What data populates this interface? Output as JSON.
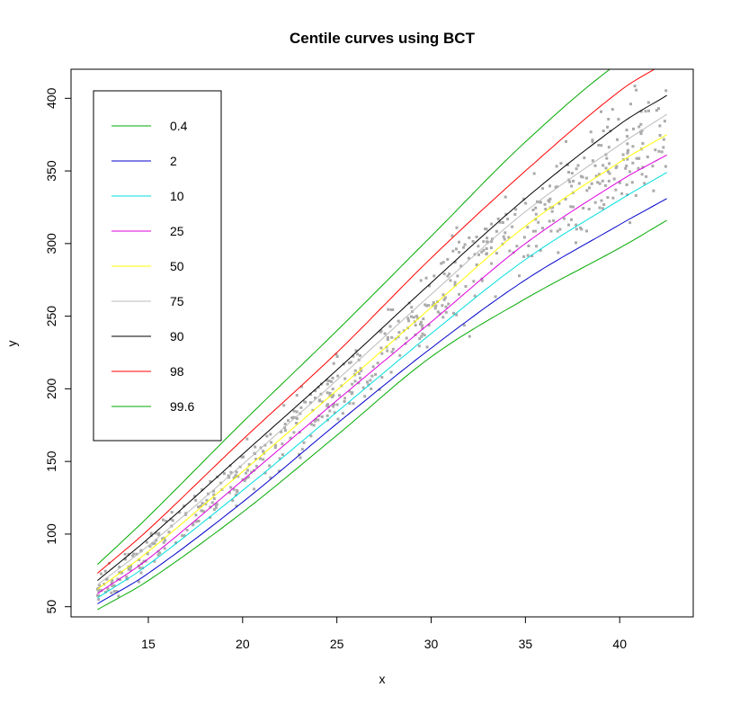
{
  "chart_data": {
    "type": "scatter",
    "title": "Centile curves using BCT",
    "xlabel": "x",
    "ylabel": "y",
    "xlim": [
      10.9,
      43.9
    ],
    "ylim": [
      43,
      420
    ],
    "xticks": [
      15,
      20,
      25,
      30,
      35,
      40
    ],
    "yticks": [
      50,
      100,
      150,
      200,
      250,
      300,
      350,
      400
    ],
    "grid": false,
    "legend_position": "top-left",
    "series": [
      {
        "name": "0.4",
        "color": "#00aa00",
        "x": [
          12.3,
          15,
          20,
          25,
          30,
          35,
          40,
          42.5
        ],
        "y": [
          48,
          68,
          115,
          168,
          222,
          262,
          297,
          316
        ]
      },
      {
        "name": "2",
        "color": "#0000cc",
        "x": [
          12.3,
          15,
          20,
          25,
          30,
          35,
          40,
          42.5
        ],
        "y": [
          52,
          73,
          122,
          176,
          228,
          275,
          313,
          331
        ]
      },
      {
        "name": "10",
        "color": "#00dddd",
        "x": [
          12.3,
          15,
          20,
          25,
          30,
          35,
          40,
          42.5
        ],
        "y": [
          56,
          79,
          130,
          184,
          238,
          289,
          330,
          349
        ]
      },
      {
        "name": "25",
        "color": "#dd00dd",
        "x": [
          12.3,
          15,
          20,
          25,
          30,
          35,
          40,
          42.5
        ],
        "y": [
          59,
          83,
          137,
          192,
          246,
          300,
          343,
          361
        ]
      },
      {
        "name": "50",
        "color": "#ffff00",
        "x": [
          12.3,
          15,
          20,
          25,
          30,
          35,
          40,
          42.5
        ],
        "y": [
          62,
          88,
          143,
          199,
          256,
          312,
          356,
          375
        ]
      },
      {
        "name": "75",
        "color": "#bbbbbb",
        "x": [
          12.3,
          15,
          20,
          25,
          30,
          35,
          40,
          42.5
        ],
        "y": [
          65,
          92,
          148,
          206,
          265,
          322,
          368,
          389
        ]
      },
      {
        "name": "90",
        "color": "#000000",
        "x": [
          12.3,
          15,
          20,
          25,
          30,
          35,
          40,
          42.5
        ],
        "y": [
          68,
          97,
          155,
          213,
          273,
          331,
          382,
          402
        ]
      },
      {
        "name": "98",
        "color": "#ff0000",
        "x": [
          12.3,
          15,
          20,
          25,
          30,
          35,
          40,
          42.5
        ],
        "y": [
          73,
          103,
          165,
          225,
          290,
          350,
          405,
          425
        ]
      },
      {
        "name": "99.6",
        "color": "#00aa00",
        "x": [
          12.3,
          15,
          20,
          25,
          30,
          35,
          40,
          42.5
        ],
        "y": [
          79,
          112,
          177,
          240,
          305,
          370,
          425,
          440
        ]
      }
    ],
    "points_color": "#aaaaaa"
  }
}
